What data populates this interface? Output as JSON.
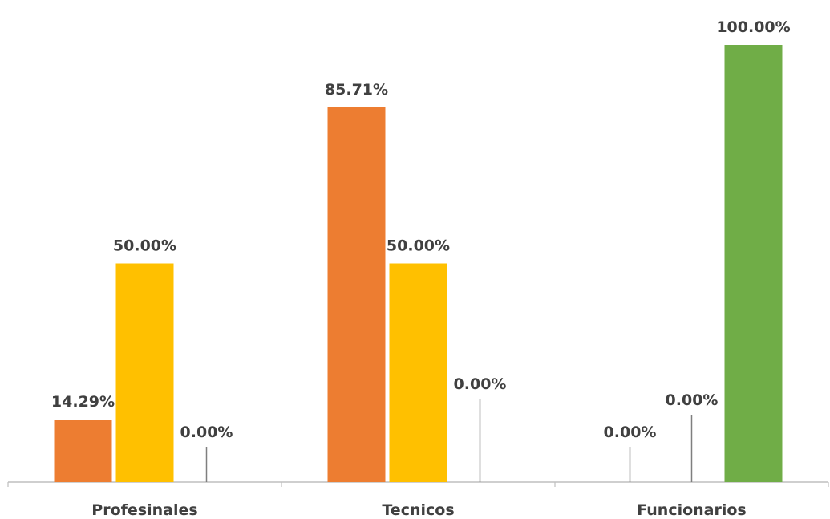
{
  "chart_data": {
    "type": "bar",
    "categories": [
      "Profesinales",
      "Tecnicos",
      "Funcionarios"
    ],
    "series": [
      {
        "color": "#ED7D31",
        "values": [
          14.29,
          85.71,
          0.0
        ],
        "labels": [
          "14.29%",
          "85.71%",
          "0.00%"
        ]
      },
      {
        "color": "#FFC000",
        "values": [
          50.0,
          50.0,
          0.0
        ],
        "labels": [
          "50.00%",
          "50.00%",
          "0.00%"
        ]
      },
      {
        "color": "#70AD47",
        "values": [
          0.0,
          0.0,
          100.0
        ],
        "labels": [
          "0.00%",
          "0.00%",
          "100.00%"
        ]
      }
    ],
    "ylim": [
      0,
      100
    ],
    "value_format": "percent"
  }
}
